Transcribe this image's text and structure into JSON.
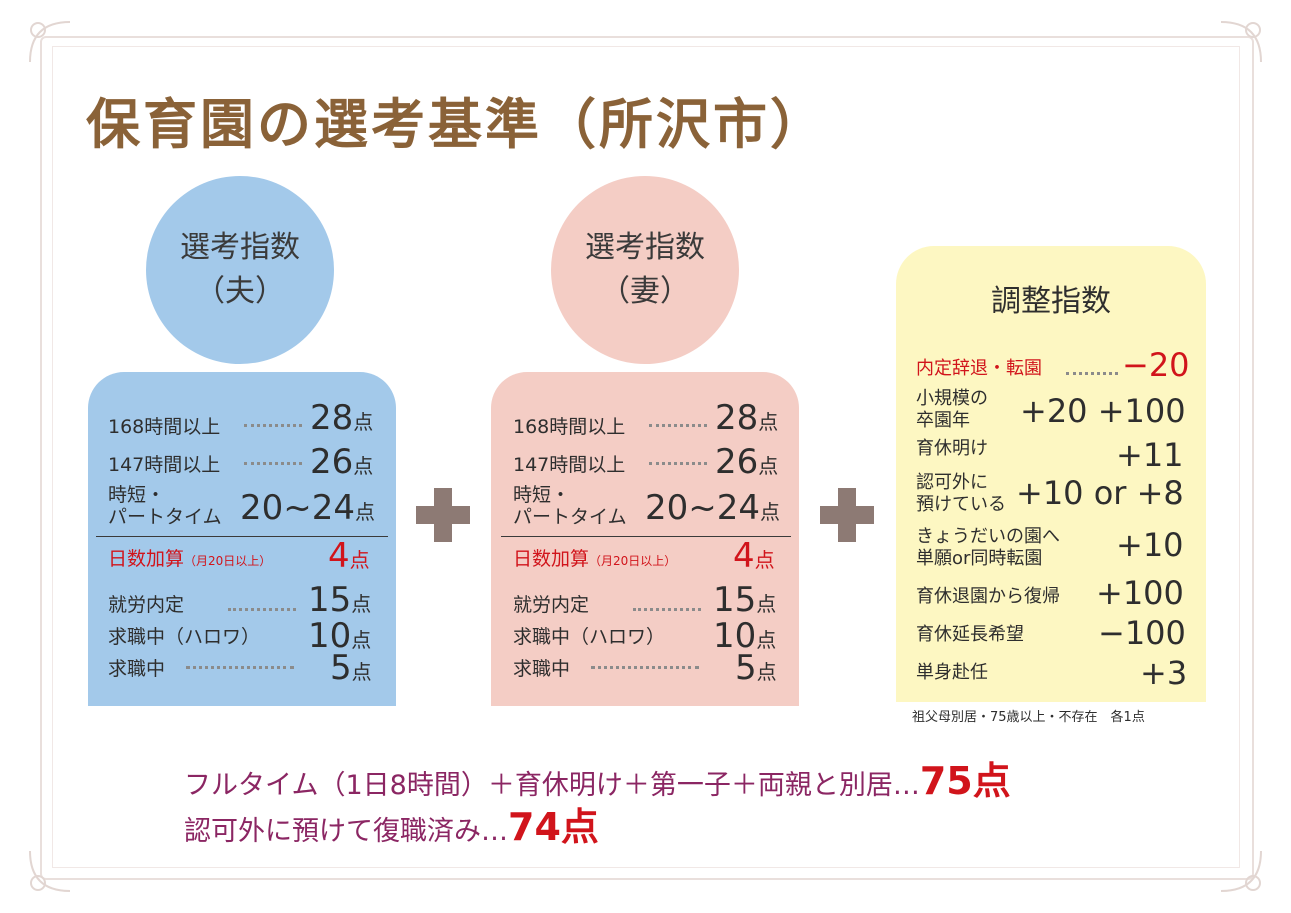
{
  "title": "保育園の選考基準（所沢市）",
  "husband": {
    "circle_line1": "選考指数",
    "circle_line2": "（夫）",
    "rows": [
      {
        "label": "168時間以上",
        "points": "28",
        "unit": "点"
      },
      {
        "label": "147時間以上",
        "points": "26",
        "unit": "点"
      },
      {
        "label_line1": "時短・",
        "label_line2": "パートタイム",
        "points": "20~24",
        "unit": "点"
      }
    ],
    "bonus": {
      "label": "日数加算",
      "note": "（月20日以上）",
      "points": "4",
      "unit": "点"
    },
    "rows2": [
      {
        "label": "就労内定",
        "points": "15",
        "unit": "点"
      },
      {
        "label": "求職中（ハロワ）",
        "points": "10",
        "unit": "点"
      },
      {
        "label": "求職中",
        "points": "5",
        "unit": "点"
      }
    ]
  },
  "wife": {
    "circle_line1": "選考指数",
    "circle_line2": "（妻）",
    "rows": [
      {
        "label": "168時間以上",
        "points": "28",
        "unit": "点"
      },
      {
        "label": "147時間以上",
        "points": "26",
        "unit": "点"
      },
      {
        "label_line1": "時短・",
        "label_line2": "パートタイム",
        "points": "20~24",
        "unit": "点"
      }
    ],
    "bonus": {
      "label": "日数加算",
      "note": "（月20日以上）",
      "points": "4",
      "unit": "点"
    },
    "rows2": [
      {
        "label": "就労内定",
        "points": "15",
        "unit": "点"
      },
      {
        "label": "求職中（ハロワ）",
        "points": "10",
        "unit": "点"
      },
      {
        "label": "求職中",
        "points": "5",
        "unit": "点"
      }
    ]
  },
  "adjust": {
    "title": "調整指数",
    "items": [
      {
        "label": "内定辞退・転園",
        "value": "−20"
      },
      {
        "label_line1": "小規模の",
        "label_line2": "卒園年",
        "value": "+20 +100"
      },
      {
        "label": "育休明け",
        "value": "+11"
      },
      {
        "label_line1": "認可外に",
        "label_line2": "預けている",
        "value": "+10 or +8"
      },
      {
        "label_line1": "きょうだいの園へ",
        "label_line2": "単願or同時転園",
        "value": "+10"
      },
      {
        "label": "育休退園から復帰",
        "value": "+100"
      },
      {
        "label": "育休延長希望",
        "value": "−100"
      },
      {
        "label": "単身赴任",
        "value": "+3"
      }
    ],
    "footnote": "祖父母別居・75歳以上・不存在　各1点"
  },
  "bottom": {
    "line1_text": "フルタイム（1日8時間）＋育休明け＋第一子＋両親と別居…",
    "line1_points": "75点",
    "line2_text": "認可外に預けて復職済み…",
    "line2_points": "74点"
  },
  "colors": {
    "title_brown": "#8a6238",
    "husband_blue": "#a3c9ea",
    "wife_pink": "#f4cdc5",
    "adjust_yellow": "#fdf7c2",
    "accent_red": "#d1141b",
    "bottom_purple": "#8b2663",
    "plus_gray": "#8d7a74"
  }
}
